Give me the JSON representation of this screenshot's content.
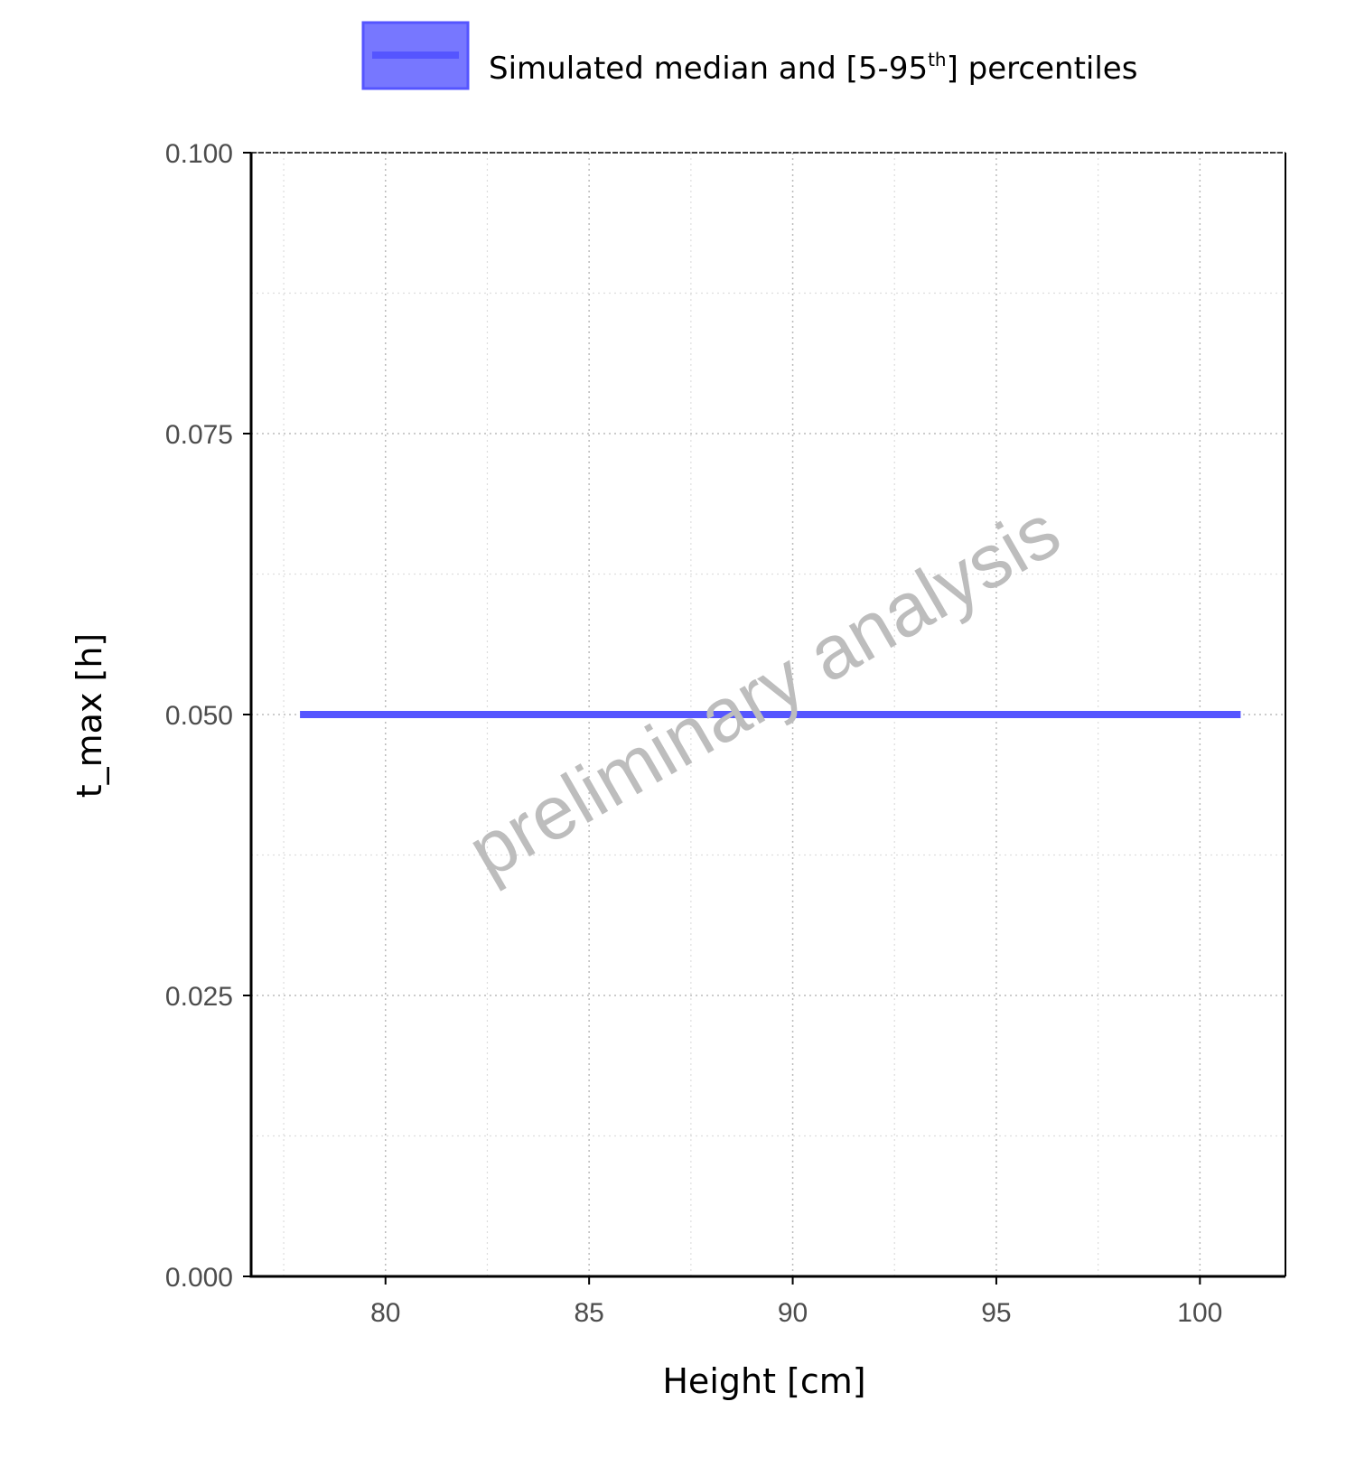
{
  "chart_data": {
    "type": "line",
    "xlabel": "Height [cm]",
    "ylabel": "t_max [h]",
    "xlim": [
      76.7,
      102.1
    ],
    "ylim": [
      0.0,
      0.1
    ],
    "x_ticks": [
      "80",
      "85",
      "90",
      "95",
      "100"
    ],
    "x_tick_values": [
      80,
      85,
      90,
      95,
      100
    ],
    "y_ticks": [
      "0.000",
      "0.025",
      "0.050",
      "0.075",
      "0.100"
    ],
    "y_tick_values": [
      0.0,
      0.025,
      0.05,
      0.075,
      0.1
    ],
    "grid": "dotted major and minor",
    "legend": {
      "position": "top",
      "label_main": "Simulated median and [5-95",
      "label_sup": "th",
      "label_end": "] percentiles"
    },
    "series": [
      {
        "name": "Simulated median and [5-95th] percentiles",
        "color": "#5555ff",
        "x": [
          77.9,
          101.0
        ],
        "median": [
          0.05,
          0.05
        ],
        "p5": [
          0.05,
          0.05
        ],
        "p95": [
          0.05,
          0.05
        ]
      }
    ],
    "watermark": "preliminary analysis"
  }
}
